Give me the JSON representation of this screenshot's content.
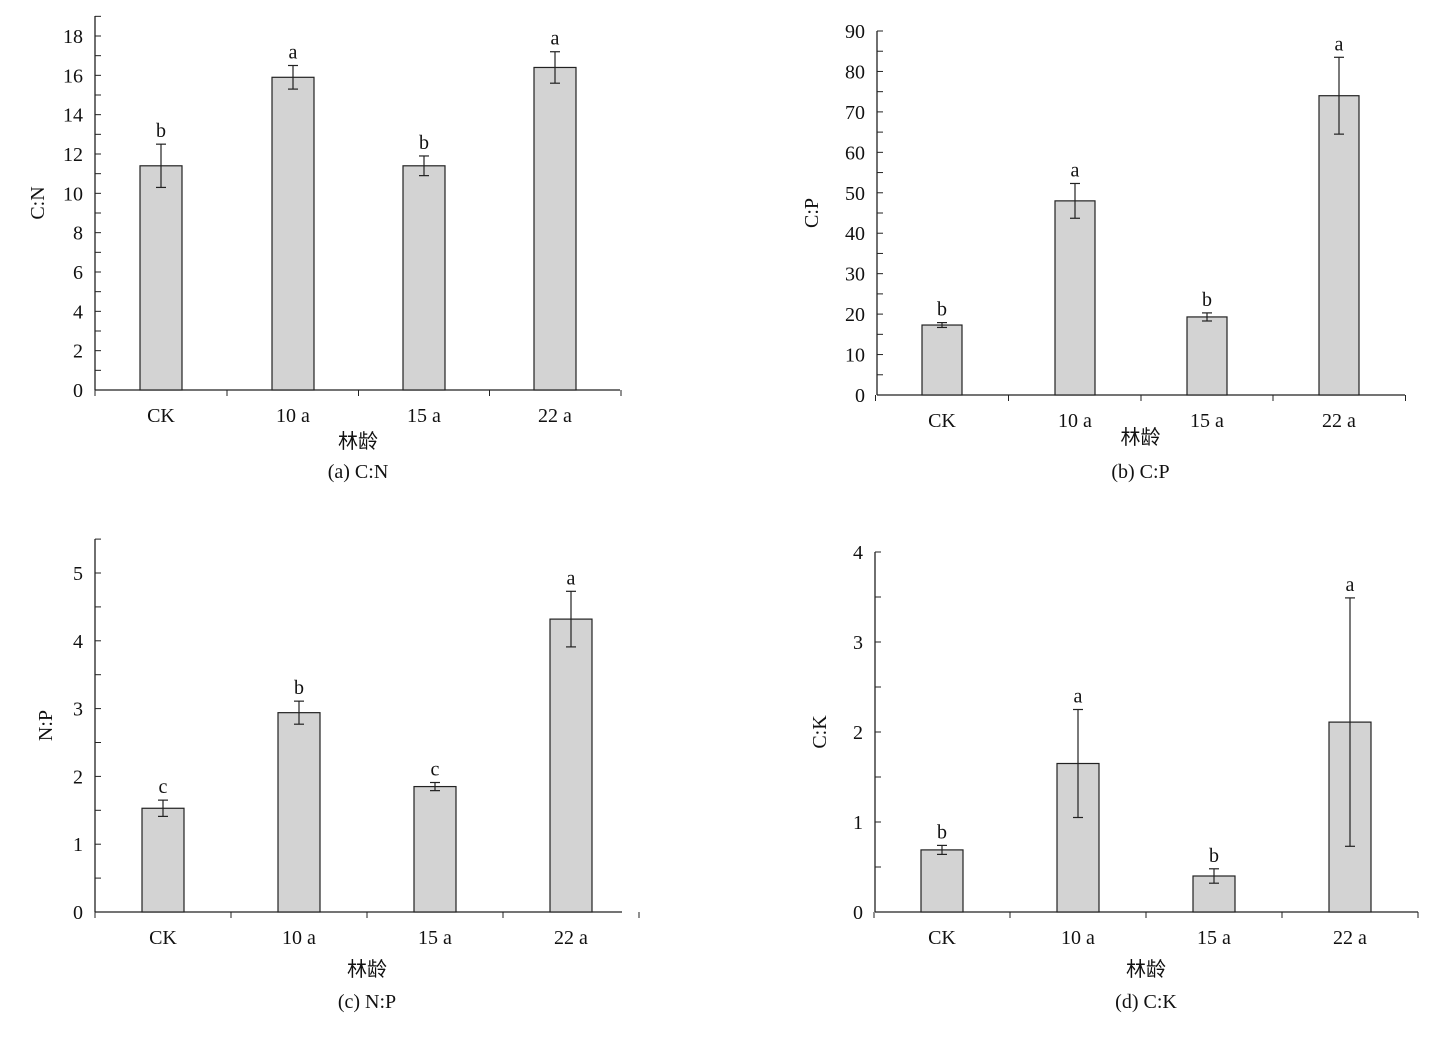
{
  "chart_data": [
    {
      "type": "bar",
      "title": "(a) C:N",
      "xlabel": "林龄",
      "ylabel": "C:N",
      "categories": [
        "CK",
        "10 a",
        "15 a",
        "22 a"
      ],
      "values": [
        11.4,
        15.9,
        11.4,
        16.4
      ],
      "errors": [
        1.1,
        0.6,
        0.5,
        0.8
      ],
      "significance": [
        "b",
        "a",
        "b",
        "a"
      ],
      "ylim": [
        0,
        19
      ],
      "yticks": [
        0,
        2,
        4,
        6,
        8,
        10,
        12,
        14,
        16,
        18
      ],
      "bar_color": "#d3d3d3"
    },
    {
      "type": "bar",
      "title": "(b) C:P",
      "xlabel": "林龄",
      "ylabel": "C:P",
      "categories": [
        "CK",
        "10 a",
        "15 a",
        "22 a"
      ],
      "values": [
        17.3,
        48.0,
        19.3,
        74.0
      ],
      "errors": [
        0.6,
        4.3,
        1.0,
        9.5
      ],
      "significance": [
        "b",
        "a",
        "b",
        "a"
      ],
      "ylim": [
        0,
        90
      ],
      "yticks": [
        0,
        10,
        20,
        30,
        40,
        50,
        60,
        70,
        80,
        90
      ],
      "bar_color": "#d3d3d3"
    },
    {
      "type": "bar",
      "title": "(c)  N:P",
      "xlabel": "林龄",
      "ylabel": "N:P",
      "categories": [
        "CK",
        "10 a",
        "15 a",
        "22 a"
      ],
      "values": [
        1.53,
        2.94,
        1.85,
        4.32
      ],
      "errors": [
        0.12,
        0.17,
        0.06,
        0.41
      ],
      "significance": [
        "c",
        "b",
        "c",
        "a"
      ],
      "ylim": [
        0,
        5.5
      ],
      "yticks": [
        0,
        1,
        2,
        3,
        4,
        5
      ],
      "bar_color": "#d3d3d3"
    },
    {
      "type": "bar",
      "title": "(d) C:K",
      "xlabel": "林龄",
      "ylabel": "C:K",
      "categories": [
        "CK",
        "10 a",
        "15 a",
        "22 a"
      ],
      "values": [
        0.69,
        1.65,
        0.4,
        2.11
      ],
      "errors": [
        0.05,
        0.6,
        0.08,
        1.38
      ],
      "significance": [
        "b",
        "a",
        "b",
        "a"
      ],
      "ylim": [
        0,
        4
      ],
      "yticks": [
        0,
        1,
        2,
        3,
        4
      ],
      "bar_color": "#d3d3d3"
    }
  ]
}
